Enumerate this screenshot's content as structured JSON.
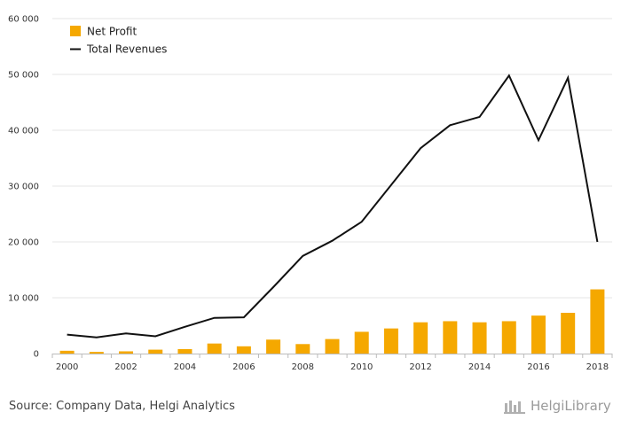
{
  "chart_data": {
    "type": "bar+line",
    "x": [
      2000,
      2001,
      2002,
      2003,
      2004,
      2005,
      2006,
      2007,
      2008,
      2009,
      2010,
      2011,
      2012,
      2013,
      2014,
      2015,
      2016,
      2017,
      2018
    ],
    "x_tick_labels": [
      "2000",
      "2002",
      "2004",
      "2006",
      "2008",
      "2010",
      "2012",
      "2014",
      "2016",
      "2018"
    ],
    "y_tick_labels": [
      "0",
      "10 000",
      "20 000",
      "30 000",
      "40 000",
      "50 000",
      "60 000"
    ],
    "ylim": [
      0,
      60000
    ],
    "grid": true,
    "legend_position": "top-left",
    "series": [
      {
        "name": "Net Profit",
        "kind": "bar",
        "color": "#F5A800",
        "values": [
          500,
          300,
          400,
          700,
          800,
          1800,
          1300,
          2500,
          1700,
          2600,
          3900,
          4500,
          5600,
          5800,
          5600,
          5800,
          6800,
          7300,
          11500
        ]
      },
      {
        "name": "Total Revenues",
        "kind": "line",
        "color": "#111111",
        "values": [
          3400,
          2900,
          3600,
          3100,
          4800,
          6400,
          6500,
          11900,
          17500,
          20200,
          23600,
          30200,
          36800,
          40900,
          42400,
          49800,
          38200,
          49400,
          20000
        ]
      }
    ]
  },
  "footer": {
    "source": "Source: Company Data, Helgi Analytics",
    "brand": "HelgiLibrary"
  }
}
